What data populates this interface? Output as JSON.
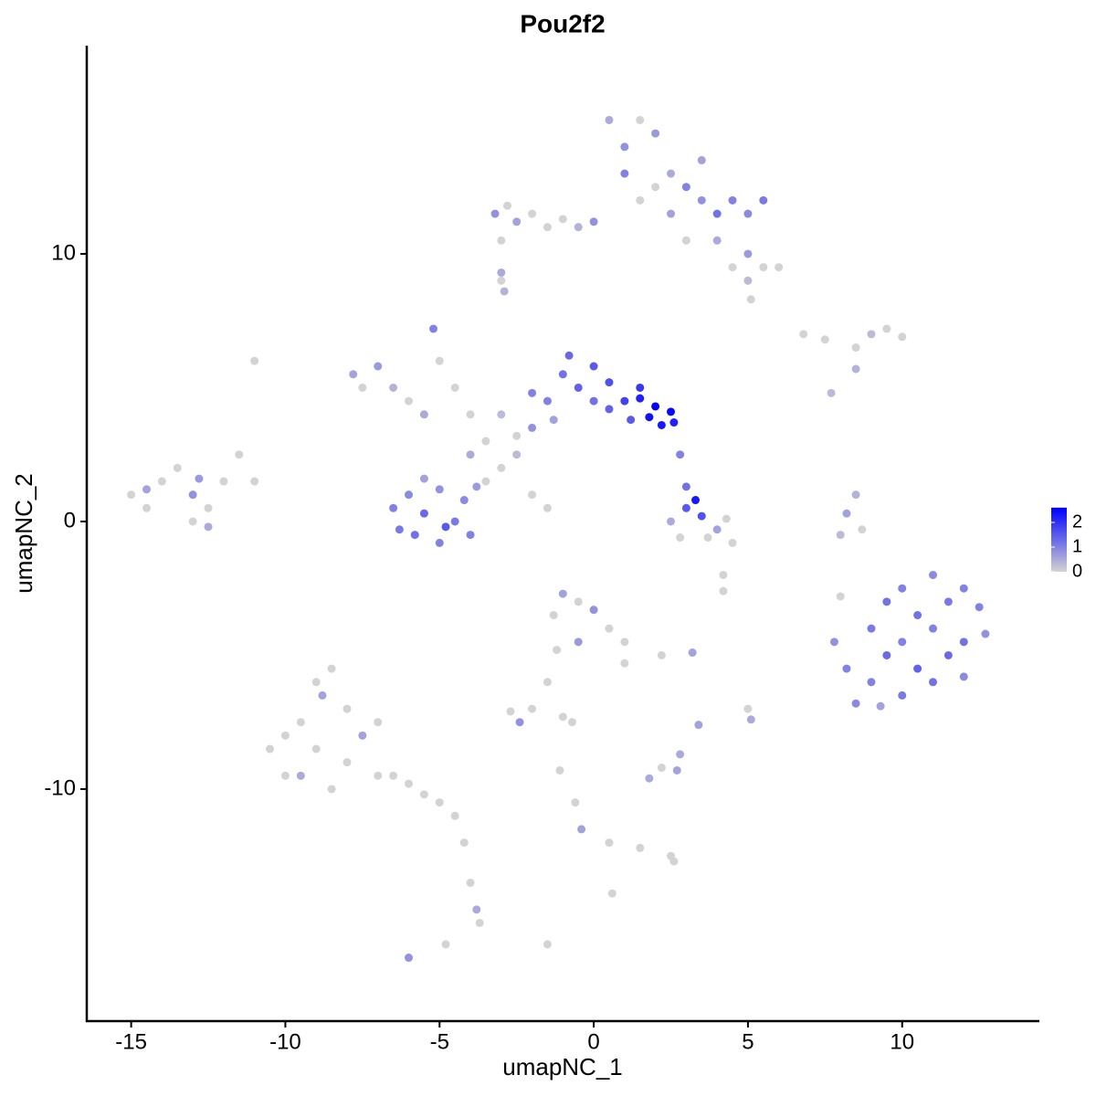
{
  "chart_data": {
    "type": "scatter",
    "title": "Pou2f2",
    "x_label": "umapNC_1",
    "y_label": "umapNC_2",
    "xlim": [
      -16.44,
      14.45
    ],
    "ylim": [
      -18.67,
      17.78
    ],
    "xticks": [
      -15,
      -10,
      -5,
      0,
      5,
      10
    ],
    "yticks": [
      -10,
      0,
      10
    ],
    "colors": [
      "#d3d3d3",
      "#0000ff"
    ],
    "colorlim": [
      0,
      2.6
    ],
    "colorticks": [
      0,
      1,
      2
    ],
    "x": [
      -15,
      -14.5,
      -14,
      -13.5,
      -13,
      -12.5,
      -12,
      -11.5,
      -13,
      -12.5,
      -11,
      -14.5,
      -12.8,
      -10.5,
      -10,
      -9.5,
      -9,
      -9,
      -8.5,
      -8.5,
      -8,
      -8,
      -7.5,
      -7,
      -7,
      -6.5,
      -6,
      -5.5,
      -5,
      -9.5,
      -10,
      -8.8,
      -4.5,
      -4.2,
      -4,
      -3.8,
      -3.7,
      -6,
      -4.8,
      0.5,
      1,
      1.5,
      1,
      2,
      1.5,
      2,
      2.5,
      3,
      3.5,
      4,
      4.5,
      5,
      5.5,
      3.5,
      4,
      4.5,
      5,
      5.5,
      6,
      5,
      3,
      2.5,
      -3.2,
      -2.8,
      -2.5,
      -2,
      -1.5,
      -1,
      -0.5,
      0,
      -3,
      -3,
      -2.9,
      -7.8,
      -7.5,
      -7,
      -6.5,
      -6,
      -5.5,
      -5.2,
      -5,
      -4.5,
      -4,
      -3.5,
      -3,
      -2.5,
      -1.5,
      -1,
      -0.8,
      -0.5,
      0,
      0,
      0.5,
      0.5,
      1,
      1.2,
      1.5,
      1.8,
      2,
      2.2,
      2.5,
      2.6,
      1.5,
      -2,
      -2,
      -1.3,
      -6.5,
      -6.3,
      -6,
      -5.8,
      -5.5,
      -5,
      -5,
      -4.5,
      -4.2,
      -4,
      -3.8,
      -5.5,
      -4.8,
      -3,
      -2,
      -1.5,
      -2.5,
      -4,
      -3.5,
      2.5,
      2.8,
      3,
      3.3,
      3.5,
      3.7,
      4,
      4.3,
      3,
      2.8,
      4.5,
      4.2,
      6.8,
      7.5,
      8.5,
      9,
      9.5,
      10,
      8.5,
      7.7,
      8.5,
      8.2,
      8,
      8.7,
      8,
      7.8,
      8.2,
      8.5,
      9,
      9,
      9.5,
      9.5,
      10,
      10,
      10,
      10.5,
      10.5,
      11,
      11,
      11,
      11.5,
      11.5,
      12,
      12,
      12,
      12.5,
      12.7,
      9.3,
      -1.3,
      -1,
      -0.5,
      0,
      0.5,
      1,
      1,
      -0.5,
      -1.2,
      -1.5,
      -2,
      -2.7,
      -2.4,
      -1,
      -0.7,
      2.2,
      3.2,
      3.4,
      5,
      5.1,
      1.8,
      2.2,
      2.7,
      2.8,
      -1.1,
      -0.6,
      -0.4,
      0.5,
      1.5,
      2.5,
      2.6,
      0.6,
      -1.5,
      -11,
      -3,
      5.1,
      4.2
    ],
    "y": [
      1,
      0.5,
      1.5,
      2,
      1,
      0.5,
      1.5,
      2.5,
      0,
      -0.2,
      1.5,
      1.2,
      1.6,
      -8.5,
      -9.5,
      -7.5,
      -6,
      -8.5,
      -5.5,
      -10,
      -7,
      -9,
      -8,
      -9.5,
      -7.5,
      -9.5,
      -9.8,
      -10.2,
      -10.5,
      -9.5,
      -8,
      -6.5,
      -11,
      -12,
      -13.5,
      -14.5,
      -15,
      -16.3,
      -15.8,
      15,
      14,
      15,
      13,
      14.5,
      12,
      12.5,
      13,
      12.5,
      12,
      11.5,
      12,
      11.5,
      12,
      13.5,
      10.5,
      9.5,
      10,
      9.5,
      9.5,
      9,
      10.5,
      11.5,
      11.5,
      11.8,
      11.2,
      11.5,
      11,
      11.3,
      11,
      11.2,
      10.5,
      9,
      8.6,
      5.5,
      5,
      5.8,
      5,
      4.5,
      4,
      7.2,
      6,
      5,
      4,
      3,
      4,
      3.2,
      4.5,
      5.5,
      6.2,
      5,
      4.5,
      5.8,
      4.2,
      5.2,
      4.5,
      3.8,
      4.6,
      3.9,
      4.3,
      3.6,
      4.1,
      3.7,
      5,
      3.5,
      4.8,
      3.8,
      0.5,
      -0.3,
      1,
      -0.5,
      0.3,
      -0.8,
      1.2,
      0,
      0.8,
      -0.5,
      1.3,
      1.6,
      -0.2,
      2,
      1,
      0.5,
      2.5,
      2.5,
      1.5,
      0,
      -0.6,
      0.5,
      0.8,
      0.2,
      -0.6,
      -0.3,
      0.1,
      1.3,
      2.5,
      -0.8,
      -2,
      7,
      6.8,
      6.5,
      7,
      7.2,
      6.9,
      5.7,
      4.8,
      1,
      0.3,
      -0.5,
      -0.3,
      -2.8,
      -4.5,
      -5.5,
      -6.8,
      -4,
      -6,
      -3,
      -5,
      -2.5,
      -4.5,
      -6.5,
      -3.5,
      -5.5,
      -2,
      -4,
      -6,
      -3,
      -5,
      -2.5,
      -4.5,
      -5.8,
      -3.2,
      -4.2,
      -6.9,
      -3.5,
      -2.7,
      -3,
      -3.3,
      -4,
      -4.5,
      -5.3,
      -4.5,
      -4.8,
      -6,
      -7,
      -7.1,
      -7.5,
      -7.3,
      -7.5,
      -5,
      -4.9,
      -7.6,
      -7,
      -7.4,
      -9.6,
      -9.2,
      -9.3,
      -8.7,
      -9.3,
      -10.5,
      -11.5,
      -12,
      -12.2,
      -12.5,
      -12.7,
      -13.9,
      -15.8,
      6,
      9.3,
      8.3,
      -2.6
    ],
    "values": [
      0,
      0,
      0,
      0,
      0.8,
      0,
      0,
      0,
      0,
      0.5,
      0,
      0.6,
      0.7,
      0,
      0,
      0,
      0,
      0,
      0,
      0,
      0,
      0,
      0.6,
      0,
      0,
      0,
      0,
      0,
      0,
      0.5,
      0,
      0.6,
      0,
      0,
      0,
      0.5,
      0,
      0.8,
      0,
      0.5,
      0.8,
      0,
      1,
      0.7,
      0,
      0,
      0.5,
      1,
      0.8,
      1.2,
      1,
      0.9,
      1.1,
      0.6,
      0.5,
      0,
      0.7,
      0,
      0,
      0.3,
      0,
      0.6,
      0.8,
      0,
      0.6,
      0,
      0,
      0,
      0.4,
      0.8,
      0,
      0,
      0.4,
      0.6,
      0,
      0.7,
      0.4,
      0,
      0.5,
      1,
      0,
      0,
      0,
      0,
      0.3,
      0,
      1,
      1.2,
      1.3,
      1.4,
      1.2,
      1.5,
      1.4,
      1.6,
      1.8,
      1.5,
      2.2,
      2.4,
      2.6,
      2.3,
      2.5,
      2.2,
      1.9,
      0.8,
      1,
      0.6,
      1,
      1.1,
      0.9,
      1.2,
      1.3,
      1,
      0.8,
      1.1,
      0.9,
      1,
      0.7,
      0.6,
      1.5,
      0,
      0,
      0,
      0.3,
      0.5,
      0,
      0.5,
      0,
      1.5,
      2.3,
      1.6,
      0,
      0.6,
      0,
      1.2,
      1,
      0,
      0,
      0,
      0,
      0,
      0.3,
      0,
      0,
      0.4,
      0.3,
      0.4,
      0.6,
      0.3,
      0,
      0,
      0.8,
      1,
      0.9,
      1.1,
      1,
      1.2,
      1.3,
      1,
      1,
      1.1,
      1.2,
      1.4,
      0.9,
      1,
      1.2,
      1.1,
      1.3,
      1,
      1.2,
      0.9,
      1,
      0.8,
      0.6,
      0,
      0.6,
      0,
      0.8,
      0,
      0,
      0,
      0.7,
      0,
      0,
      0,
      0,
      0.8,
      0,
      0,
      0,
      0.6,
      0.6,
      0,
      0.5,
      0.5,
      0,
      0.6,
      0.5,
      0,
      0,
      0.6,
      0,
      0,
      0,
      0,
      0,
      0,
      0,
      0.5,
      0,
      0
    ]
  }
}
